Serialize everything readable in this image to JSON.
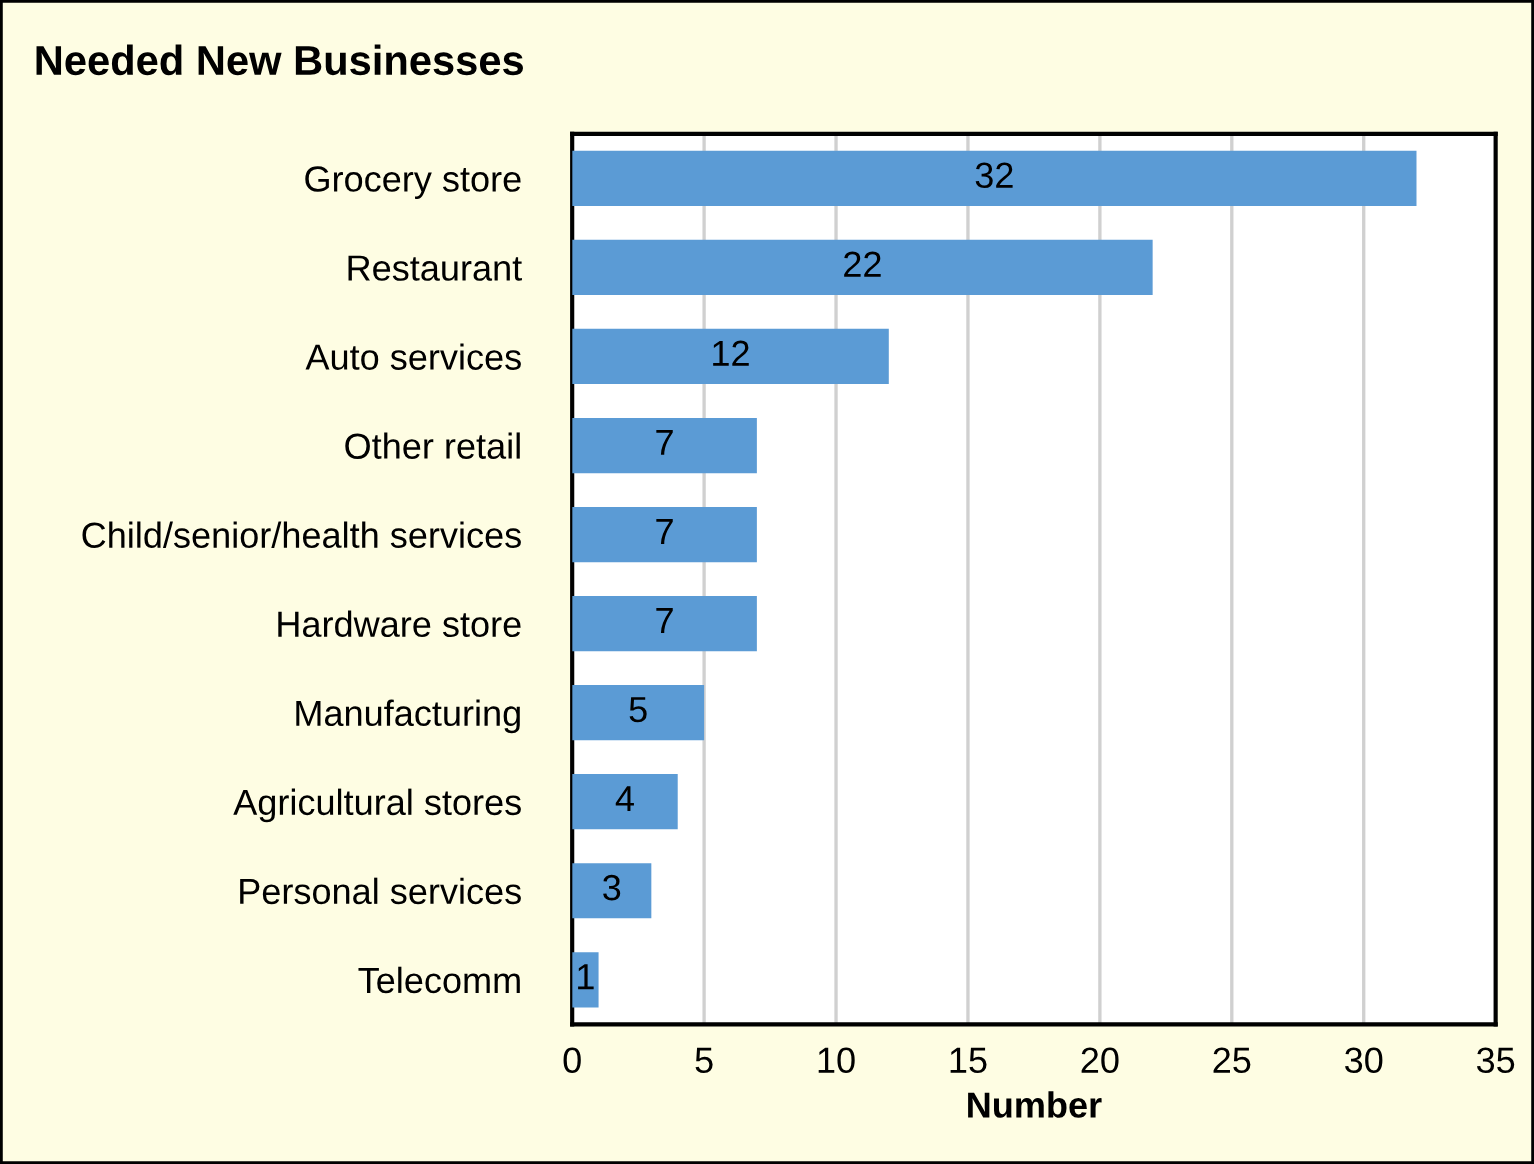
{
  "chart_data": {
    "type": "bar",
    "orientation": "horizontal",
    "title": "Needed New Businesses",
    "xlabel": "Number",
    "categories": [
      "Grocery store",
      "Restaurant",
      "Auto services",
      "Other retail",
      "Child/senior/health services",
      "Hardware store",
      "Manufacturing",
      "Agricultural stores",
      "Personal services",
      "Telecomm"
    ],
    "values": [
      32,
      22,
      12,
      7,
      7,
      7,
      5,
      4,
      3,
      1
    ],
    "color": "#5b9bd5",
    "xlim": [
      0,
      35
    ],
    "xticks": [
      0,
      5,
      10,
      15,
      20,
      25,
      30,
      35
    ],
    "grid": "x",
    "data_labels": true,
    "legend": false
  }
}
